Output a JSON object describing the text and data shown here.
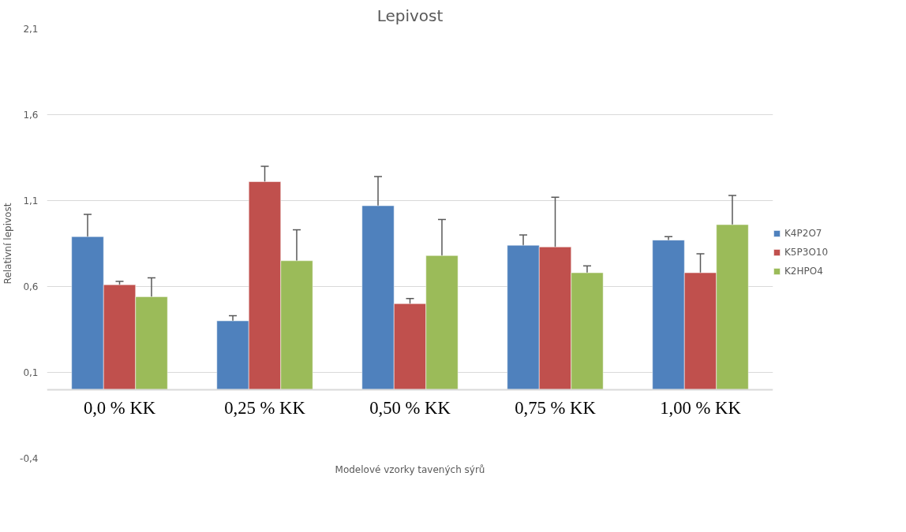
{
  "chart_data": {
    "type": "bar",
    "title": "Lepivost",
    "xlabel": "Modelové vzorky tavených sýrů",
    "ylabel": "Relativní lepivost",
    "categories": [
      "0,0 % KK",
      "0,25 % KK",
      "0,50 % KK",
      "0,75 % KK",
      "1,00 % KK"
    ],
    "series": [
      {
        "name": "K4P2O7",
        "color": "#4f81bd",
        "values": [
          0.89,
          0.4,
          1.07,
          0.84,
          0.87
        ],
        "errors": [
          0.13,
          0.03,
          0.17,
          0.06,
          0.02
        ]
      },
      {
        "name": "K5P3O10",
        "color": "#c0504d",
        "values": [
          0.61,
          1.21,
          0.5,
          0.83,
          0.68
        ],
        "errors": [
          0.02,
          0.09,
          0.03,
          0.29,
          0.11
        ]
      },
      {
        "name": "K2HPO4",
        "color": "#9bbb59",
        "values": [
          0.54,
          0.75,
          0.78,
          0.68,
          0.96
        ],
        "errors": [
          0.11,
          0.18,
          0.21,
          0.04,
          0.17
        ]
      }
    ],
    "ylim": [
      -0.4,
      2.1
    ],
    "yticks": [
      {
        "value": -0.4,
        "label": "-0,4"
      },
      {
        "value": 0.1,
        "label": "0,1"
      },
      {
        "value": 0.6,
        "label": "0,6"
      },
      {
        "value": 1.1,
        "label": "1,1"
      },
      {
        "value": 1.6,
        "label": "1,6"
      },
      {
        "value": 2.1,
        "label": "2,1"
      }
    ],
    "grid": "y",
    "legend": "right"
  }
}
